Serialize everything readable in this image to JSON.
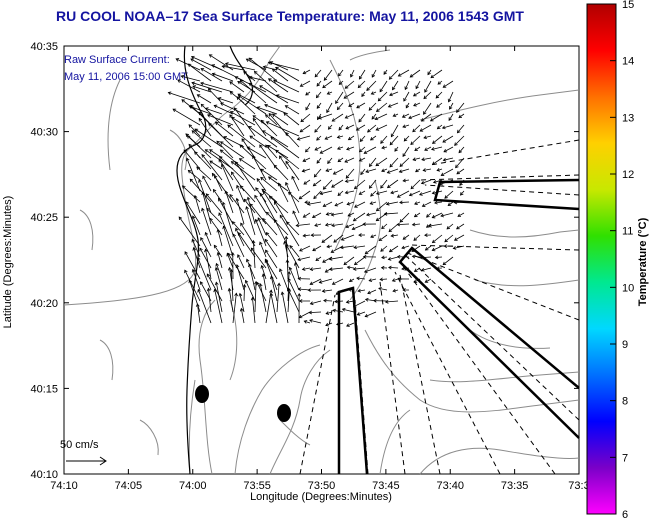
{
  "title": "RU COOL  NOAA–17  Sea Surface Temperature:  May 11, 2006 1543 GMT",
  "current_note": {
    "line1": "Raw Surface Current:",
    "line2": "May 11, 2006 15:00 GMT"
  },
  "scale_label": "50 cm/s",
  "x_axis": {
    "label": "Longitude (Degrees:Minutes)",
    "ticks": [
      "74:10",
      "74:05",
      "74:00",
      "73:55",
      "73:50",
      "73:45",
      "73:40",
      "73:35",
      "73:3"
    ]
  },
  "y_axis": {
    "label": "Latitude (Degrees:Minutes)",
    "ticks": [
      "40:35",
      "40:30",
      "40:25",
      "40:20",
      "40:15",
      "40:10"
    ]
  },
  "colorbar": {
    "label": "Temperature (°C)",
    "ticks": [
      "15",
      "14",
      "13",
      "12",
      "11",
      "10",
      "9",
      "8",
      "7",
      "6"
    ],
    "colors": [
      "#ff00ff",
      "#7a00c8",
      "#0000ff",
      "#0070ff",
      "#00d8ff",
      "#00e890",
      "#30e000",
      "#c8e800",
      "#ffd000",
      "#ff7000",
      "#ff0000",
      "#b00000"
    ]
  },
  "colors": {
    "title": "#1414a0",
    "contour": "#8c8c8c",
    "arrows": "#000000"
  },
  "icons": [
    "scale-arrow-icon",
    "buoy-marker-icon"
  ]
}
